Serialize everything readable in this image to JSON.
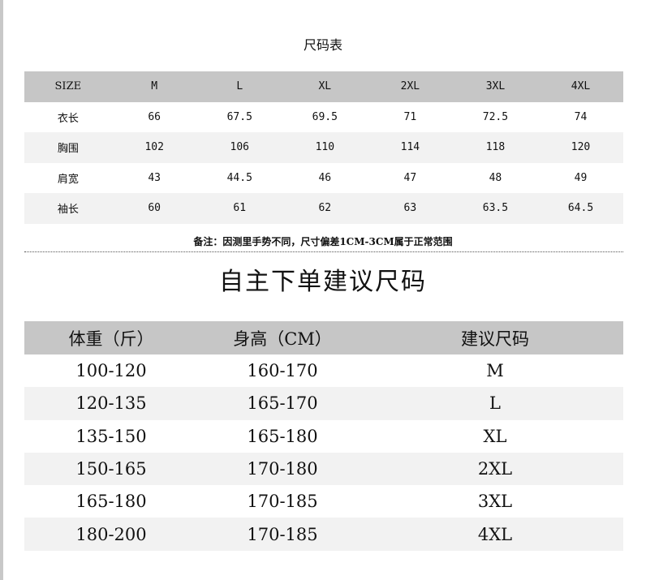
{
  "size_chart": {
    "title": "尺码表",
    "headers": [
      "SIZE",
      "M",
      "L",
      "XL",
      "2XL",
      "3XL",
      "4XL"
    ],
    "rows": [
      [
        "衣长",
        "66",
        "67.5",
        "69.5",
        "71",
        "72.5",
        "74"
      ],
      [
        "胸围",
        "102",
        "106",
        "110",
        "114",
        "118",
        "120"
      ],
      [
        "肩宽",
        "43",
        "44.5",
        "46",
        "47",
        "48",
        "49"
      ],
      [
        "袖长",
        "60",
        "61",
        "62",
        "63",
        "63.5",
        "64.5"
      ]
    ],
    "note": "备注：因测里手势不同，尺寸偏差1CM-3CM属于正常范围"
  },
  "recommend": {
    "title": "自主下单建议尺码",
    "headers": [
      "体重（斤）",
      "身高（CM）",
      "建议尺码"
    ],
    "rows": [
      [
        "100-120",
        "160-170",
        "M"
      ],
      [
        "120-135",
        "165-170",
        "L"
      ],
      [
        "135-150",
        "165-180",
        "XL"
      ],
      [
        "150-165",
        "170-180",
        "2XL"
      ],
      [
        "165-180",
        "170-185",
        "3XL"
      ],
      [
        "180-200",
        "170-185",
        "4XL"
      ]
    ]
  },
  "colors": {
    "header_bg": "#c6c6c6",
    "stripe_bg": "#f2f2f2"
  }
}
